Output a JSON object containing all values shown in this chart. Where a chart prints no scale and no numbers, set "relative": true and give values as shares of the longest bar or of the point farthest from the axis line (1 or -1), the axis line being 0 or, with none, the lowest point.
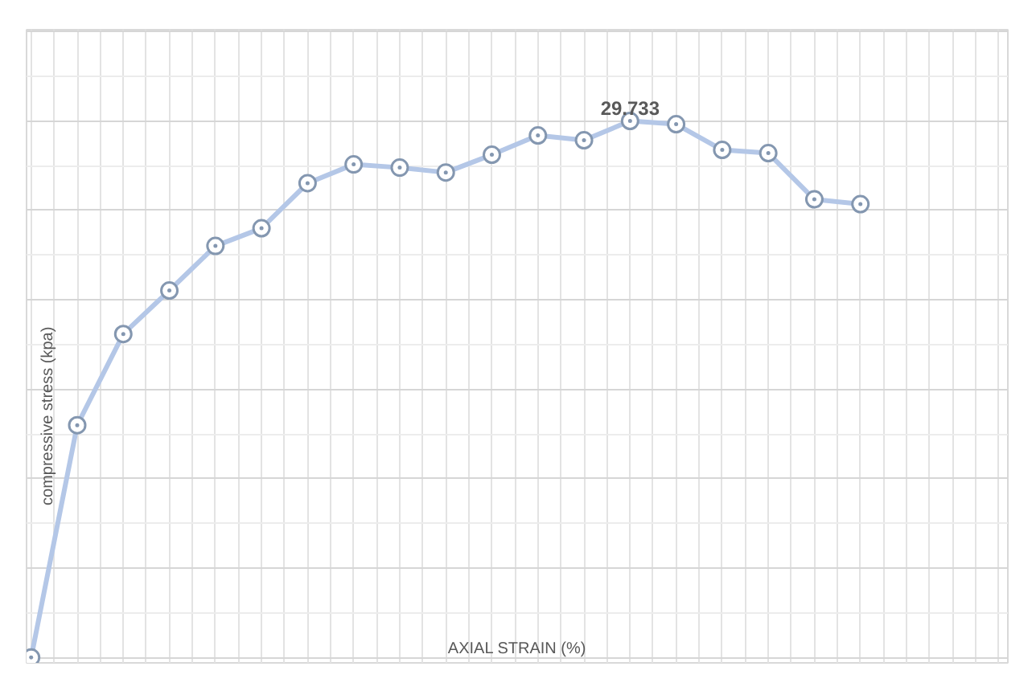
{
  "chart_data": {
    "type": "line",
    "relative": true,
    "xlabel": "AXIAL STRAIN (%)",
    "ylabel": "compressive stress (kpa)",
    "categories": [
      null,
      null,
      null,
      null,
      null,
      null,
      null,
      null,
      null,
      null,
      null,
      null,
      null,
      null,
      null,
      null,
      null,
      null,
      null
    ],
    "annotations": [
      "29.733"
    ],
    "series": [
      {
        "color": "#b4c7e7",
        "values": [
          0,
          0.433,
          0.603,
          0.684,
          0.767,
          0.8,
          0.884,
          0.919,
          0.913,
          0.904,
          0.937,
          0.973,
          0.964,
          1,
          0.994,
          0.946,
          0.94,
          0.854,
          0.845
        ]
      }
    ],
    "marker": "circle",
    "grid": true
  }
}
